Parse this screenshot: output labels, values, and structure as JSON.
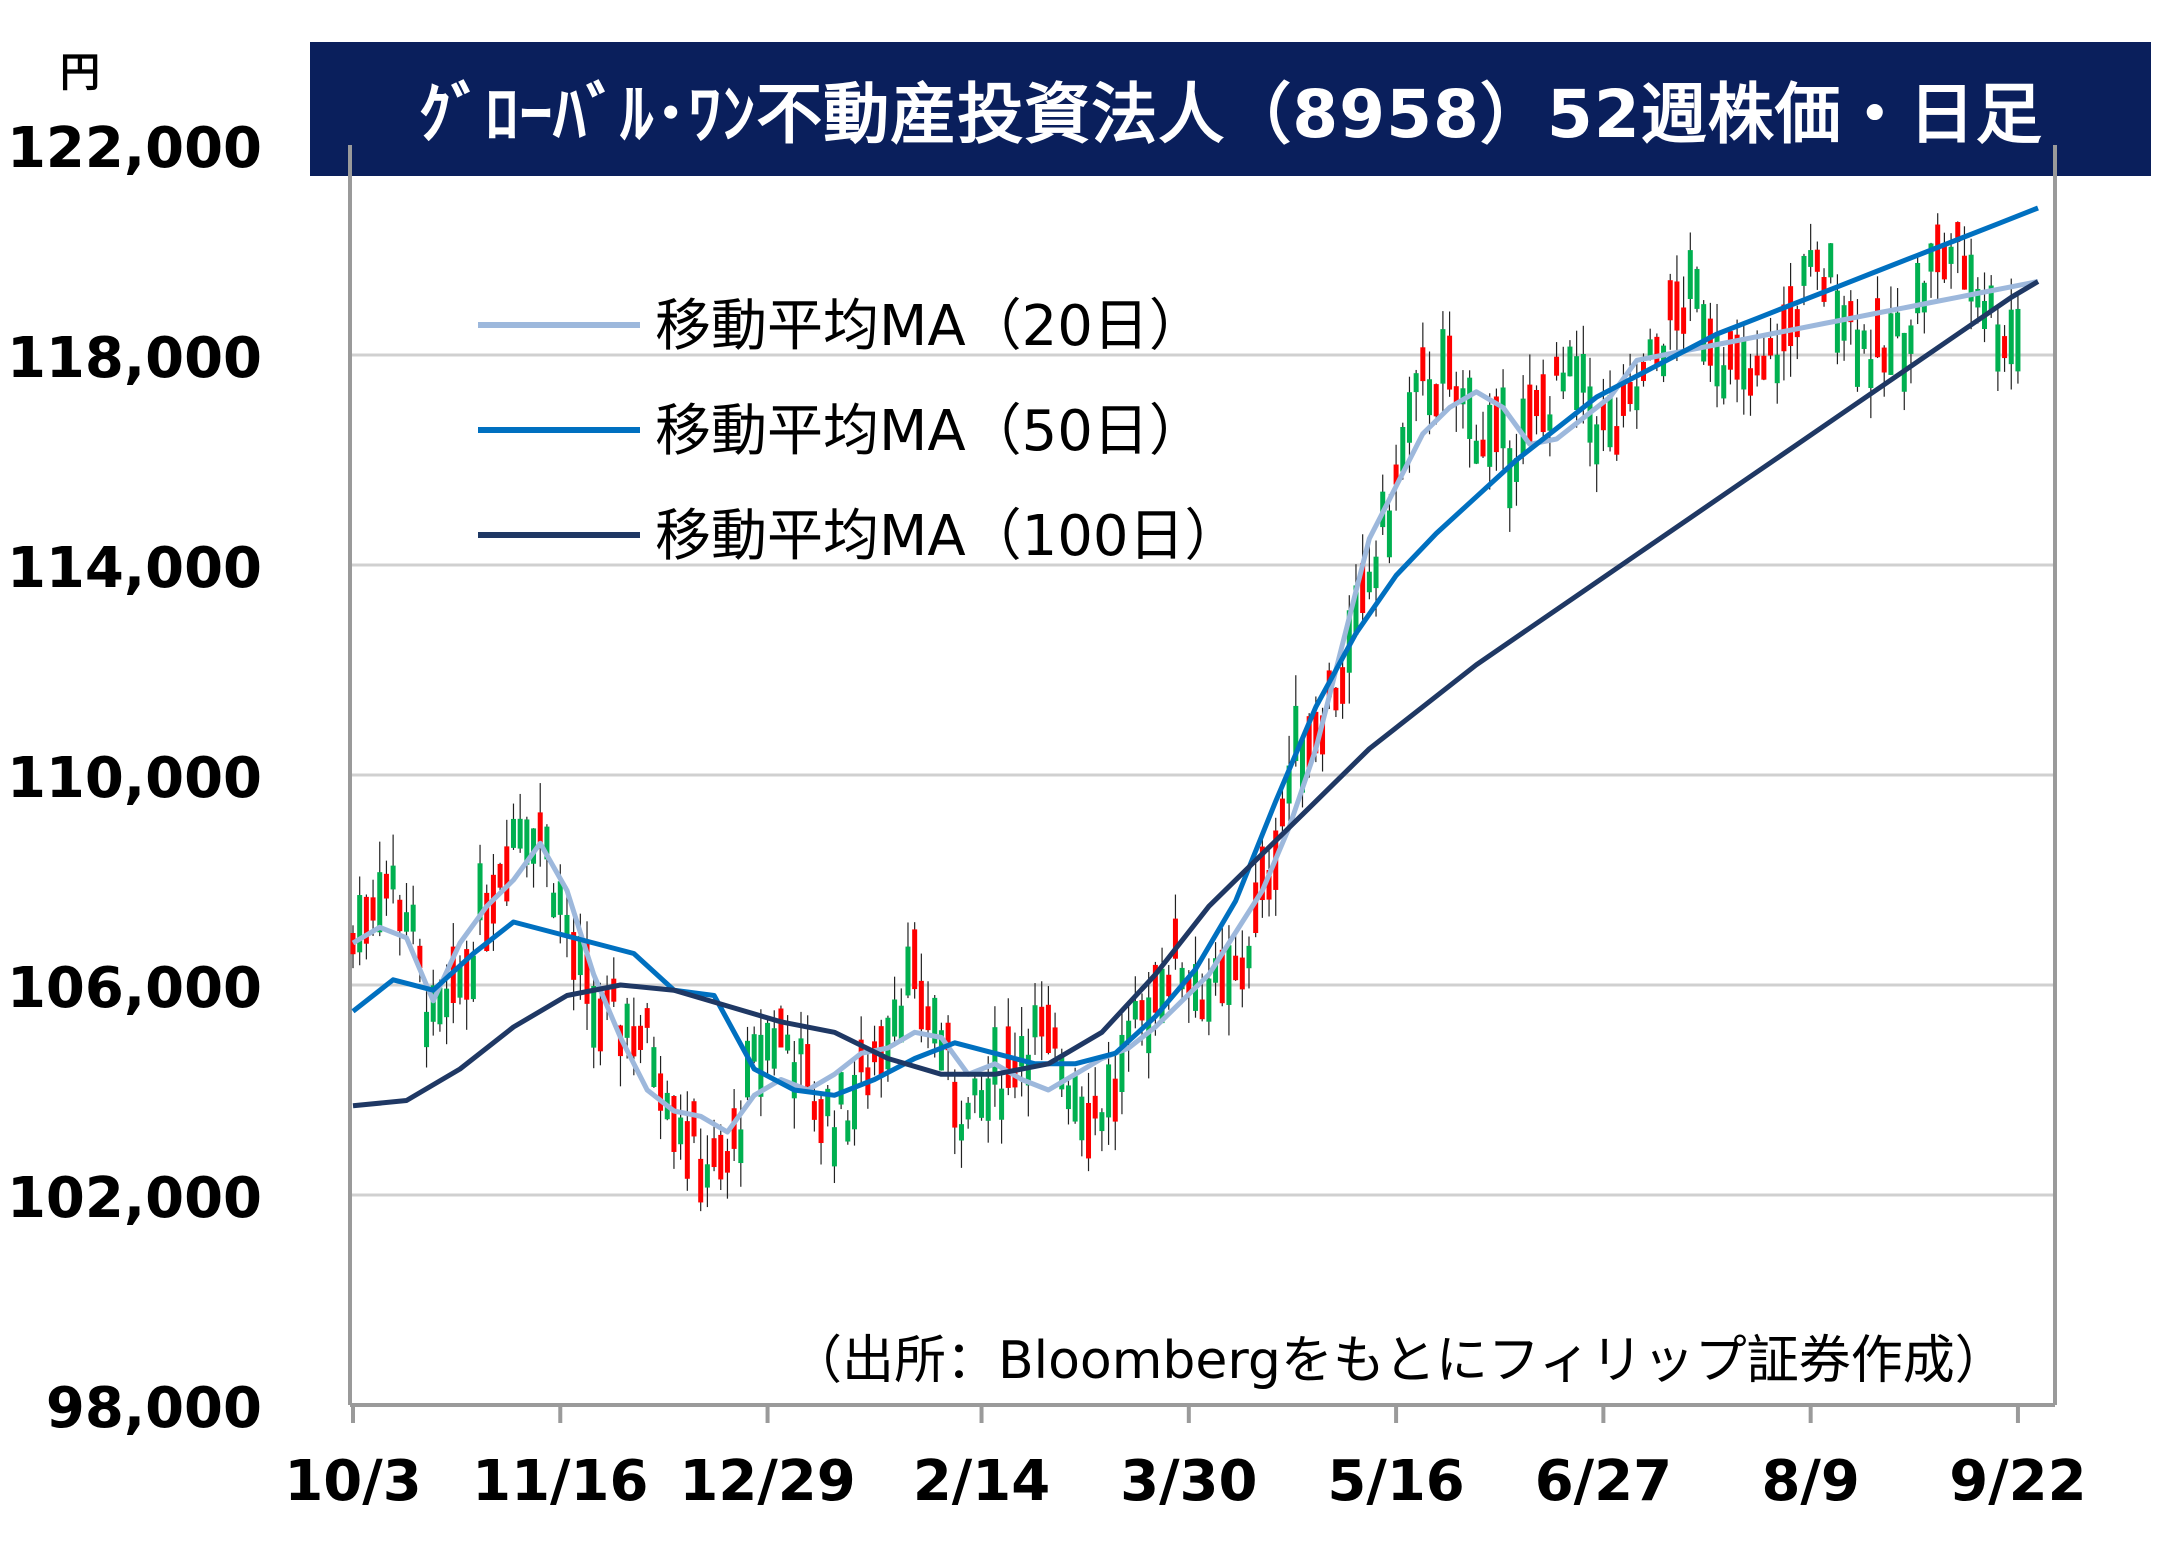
{
  "chart_data": {
    "type": "candlestick",
    "title": "ｸﾞﾛｰﾊﾞﾙ･ﾜﾝ不動産投資法人（8958）52週株価・日足",
    "ylabel": "円",
    "ylim": [
      98000,
      122000
    ],
    "yticks": [
      "122,000",
      "118,000",
      "114,000",
      "110,000",
      "106,000",
      "102,000",
      "98,000"
    ],
    "ytick_values": [
      122000,
      118000,
      114000,
      110000,
      106000,
      102000,
      98000
    ],
    "xticks": [
      "10/3",
      "11/16",
      "12/29",
      "2/14",
      "3/30",
      "5/16",
      "6/27",
      "8/9",
      "9/22"
    ],
    "grid": true,
    "legend_placement": "top-left",
    "source": "（出所：Bloombergをもとにフィリップ証券作成）",
    "colors": {
      "up": "#ff0000",
      "down": "#00b050",
      "ma20": "#9db8dc",
      "ma50": "#0070c0",
      "ma100": "#1f3864",
      "title_bg": "#0a1f5c"
    },
    "series": [
      {
        "name": "移動平均MA（20日）",
        "x": [
          0,
          4,
          8,
          12,
          16,
          20,
          24,
          28,
          32,
          36,
          40,
          44,
          48,
          52,
          56,
          60,
          64,
          68,
          72,
          76,
          80,
          84,
          88,
          92,
          96,
          100,
          104,
          108,
          112,
          116,
          120,
          124,
          128,
          132,
          136,
          140,
          144,
          148,
          152,
          156,
          160,
          164,
          168,
          172,
          176,
          180,
          184,
          188,
          192,
          196,
          200,
          204,
          208,
          212,
          216,
          220,
          224,
          228,
          232,
          236,
          240,
          244,
          248,
          252
        ],
        "values": [
          106800,
          107100,
          106900,
          105700,
          106800,
          107500,
          108000,
          108700,
          107800,
          106200,
          105000,
          104000,
          103600,
          103500,
          103200,
          103900,
          104200,
          104000,
          104300,
          104700,
          104800,
          105100,
          105000,
          104300,
          104500,
          104200,
          104000,
          104300,
          104600,
          104800,
          105200,
          105700,
          106200,
          107000,
          107800,
          109000,
          110500,
          112500,
          114500,
          115500,
          116500,
          117000,
          117300,
          117000,
          116300,
          116400,
          116800,
          117200,
          117900,
          118000,
          118100,
          118200,
          118300,
          118400,
          118500,
          118600,
          118700,
          118800,
          118900,
          119000,
          119100,
          119200,
          119300,
          119400
        ]
      },
      {
        "name": "移動平均MA（50日）",
        "x": [
          0,
          6,
          12,
          18,
          24,
          30,
          36,
          42,
          48,
          54,
          60,
          66,
          72,
          78,
          84,
          90,
          96,
          102,
          108,
          114,
          120,
          126,
          132,
          138,
          144,
          150,
          156,
          162,
          168,
          174,
          180,
          186,
          192,
          198,
          204,
          210,
          216,
          222,
          228,
          234,
          240,
          246,
          252
        ],
        "values": [
          105500,
          106100,
          105900,
          106600,
          107200,
          107000,
          106800,
          106600,
          105900,
          105800,
          104400,
          104000,
          103900,
          104200,
          104600,
          104900,
          104700,
          104500,
          104500,
          104700,
          105400,
          106300,
          107600,
          109500,
          111300,
          112700,
          113800,
          114600,
          115300,
          116000,
          116600,
          117200,
          117600,
          118000,
          118400,
          118700,
          119000,
          119300,
          119600,
          119900,
          120200,
          120500,
          120800
        ]
      },
      {
        "name": "移動平均MA（100日）",
        "x": [
          0,
          8,
          16,
          24,
          32,
          40,
          48,
          56,
          64,
          72,
          80,
          88,
          96,
          104,
          112,
          120,
          128,
          136,
          144,
          152,
          160,
          168,
          176,
          184,
          192,
          200,
          208,
          216,
          224,
          232,
          240,
          248,
          252
        ],
        "values": [
          103700,
          103800,
          104400,
          105200,
          105800,
          106000,
          105900,
          105600,
          105300,
          105100,
          104600,
          104300,
          104300,
          104500,
          105100,
          106200,
          107500,
          108500,
          109500,
          110500,
          111300,
          112100,
          112800,
          113500,
          114200,
          114900,
          115600,
          116300,
          117000,
          117700,
          118400,
          119100,
          119400
        ]
      }
    ]
  },
  "legend": [
    {
      "label": "移動平均MA（20日）",
      "color": "#9db8dc"
    },
    {
      "label": "移動平均MA（50日）",
      "color": "#0070c0"
    },
    {
      "label": "移動平均MA（100日）",
      "color": "#1f3864"
    }
  ]
}
